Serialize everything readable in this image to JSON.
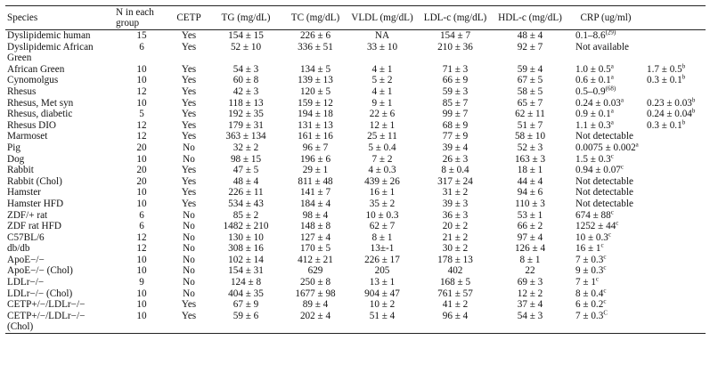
{
  "headers": {
    "species": "Species",
    "n": "N in each group",
    "cetp": "CETP",
    "tg": "TG (mg/dL)",
    "tc": "TC (mg/dL)",
    "vldl": "VLDL (mg/dL)",
    "ldl": "LDL-c (mg/dL)",
    "hdl": "HDL-c (mg/dL)",
    "crp": "CRP (ug/ml)"
  },
  "rows": [
    {
      "species": "Dyslipidemic human",
      "n": "15",
      "cetp": "Yes",
      "tg": "154 ± 15",
      "tc": "226 ± 6",
      "vldl": "NA",
      "ldl": "154 ± 7",
      "hdl": "48 ± 4",
      "crp": "0.1–8.6",
      "crp_sup": "(29)",
      "crp2": "",
      "crp2_sup": ""
    },
    {
      "species": "Dyslipidemic African Green",
      "n": "6",
      "cetp": "Yes",
      "tg": "52 ± 10",
      "tc": "336 ± 51",
      "vldl": "33 ± 10",
      "ldl": "210 ± 36",
      "hdl": "92 ± 7",
      "crp": "Not available",
      "crp_sup": "",
      "crp2": "",
      "crp2_sup": ""
    },
    {
      "species": "African Green",
      "n": "10",
      "cetp": "Yes",
      "tg": "54 ± 3",
      "tc": "134 ± 5",
      "vldl": "4 ± 1",
      "ldl": "71 ± 3",
      "hdl": "59 ± 4",
      "crp": "1.0 ± 0.5",
      "crp_sup": "a",
      "crp2": "1.7 ± 0.5",
      "crp2_sup": "b"
    },
    {
      "species": "Cynomolgus",
      "n": "10",
      "cetp": "Yes",
      "tg": "60 ± 8",
      "tc": "139 ± 13",
      "vldl": "5 ± 2",
      "ldl": "66 ± 9",
      "hdl": "67 ± 5",
      "crp": "0.6 ± 0.1",
      "crp_sup": "a",
      "crp2": "0.3 ± 0.1",
      "crp2_sup": "b"
    },
    {
      "species": "Rhesus",
      "n": "12",
      "cetp": "Yes",
      "tg": "42 ± 3",
      "tc": "120 ± 5",
      "vldl": "4 ± 1",
      "ldl": "59 ± 3",
      "hdl": "58 ± 5",
      "crp": "0.5–0.9",
      "crp_sup": "(68)",
      "crp2": "",
      "crp2_sup": ""
    },
    {
      "species": "Rhesus, Met syn",
      "n": "10",
      "cetp": "Yes",
      "tg": "118 ± 13",
      "tc": "159 ± 12",
      "vldl": "9 ± 1",
      "ldl": "85 ± 7",
      "hdl": "65 ± 7",
      "crp": "0.24 ± 0.03",
      "crp_sup": "a",
      "crp2": "0.23 ± 0.03",
      "crp2_sup": "b"
    },
    {
      "species": "Rhesus, diabetic",
      "n": "5",
      "cetp": "Yes",
      "tg": "192 ± 35",
      "tc": "194 ± 18",
      "vldl": "22 ± 6",
      "ldl": "99 ± 7",
      "hdl": "62 ± 11",
      "crp": "0.9 ± 0.1",
      "crp_sup": "a",
      "crp2": "0.24 ± 0.04",
      "crp2_sup": "b"
    },
    {
      "species": "Rhesus DIO",
      "n": "12",
      "cetp": "Yes",
      "tg": "179 ± 31",
      "tc": "131 ± 13",
      "vldl": "12 ± 1",
      "ldl": "68 ± 9",
      "hdl": "51 ± 7",
      "crp": "1.1 ± 0.3",
      "crp_sup": "a",
      "crp2": "0.3 ± 0.1",
      "crp2_sup": "b"
    },
    {
      "species": "Marmoset",
      "n": "12",
      "cetp": "Yes",
      "tg": "363 ± 134",
      "tc": "161 ± 16",
      "vldl": "25 ± 11",
      "ldl": "77 ± 9",
      "hdl": "58 ± 10",
      "crp": "Not detectable",
      "crp_sup": "",
      "crp2": "",
      "crp2_sup": ""
    },
    {
      "species": "Pig",
      "n": "20",
      "cetp": "No",
      "tg": "32 ± 2",
      "tc": "96 ± 7",
      "vldl": "5 ± 0.4",
      "ldl": "39 ± 4",
      "hdl": "52 ± 3",
      "crp": "0.0075 ± 0.002",
      "crp_sup": "a",
      "crp2": "",
      "crp2_sup": ""
    },
    {
      "species": "Dog",
      "n": "10",
      "cetp": "No",
      "tg": "98 ± 15",
      "tc": "196 ± 6",
      "vldl": "7 ± 2",
      "ldl": "26 ± 3",
      "hdl": "163 ± 3",
      "crp": "1.5 ± 0.3",
      "crp_sup": "c",
      "crp2": "",
      "crp2_sup": ""
    },
    {
      "species": "Rabbit",
      "n": "20",
      "cetp": "Yes",
      "tg": "47 ± 5",
      "tc": "29 ± 1",
      "vldl": "4 ± 0.3",
      "ldl": "8 ± 0.4",
      "hdl": "18 ± 1",
      "crp": "0.94 ± 0.07",
      "crp_sup": "c",
      "crp2": "",
      "crp2_sup": ""
    },
    {
      "species": "Rabbit (Chol)",
      "n": "20",
      "cetp": "Yes",
      "tg": "48 ± 4",
      "tc": "811 ± 48",
      "vldl": "439 ± 26",
      "ldl": "317 ± 24",
      "hdl": "44 ± 4",
      "crp": "Not detectable",
      "crp_sup": "",
      "crp2": "",
      "crp2_sup": ""
    },
    {
      "species": "Hamster",
      "n": "10",
      "cetp": "Yes",
      "tg": "226 ± 11",
      "tc": "141 ± 7",
      "vldl": "16 ± 1",
      "ldl": "31 ± 2",
      "hdl": "94 ± 6",
      "crp": "Not detectable",
      "crp_sup": "",
      "crp2": "",
      "crp2_sup": ""
    },
    {
      "species": "Hamster HFD",
      "n": "10",
      "cetp": "Yes",
      "tg": "534 ± 43",
      "tc": "184 ± 4",
      "vldl": "35 ± 2",
      "ldl": "39 ± 3",
      "hdl": "110 ± 3",
      "crp": "Not detectable",
      "crp_sup": "",
      "crp2": "",
      "crp2_sup": ""
    },
    {
      "species": "ZDF/+ rat",
      "n": "6",
      "cetp": "No",
      "tg": "85 ± 2",
      "tc": "98 ± 4",
      "vldl": "10 ± 0.3",
      "ldl": "36 ± 3",
      "hdl": "53 ± 1",
      "crp": "674 ± 88",
      "crp_sup": "c",
      "crp2": "",
      "crp2_sup": ""
    },
    {
      "species": "ZDF rat HFD",
      "n": "6",
      "cetp": "No",
      "tg": "1482 ± 210",
      "tc": "148 ± 8",
      "vldl": "62 ± 7",
      "ldl": "20 ± 2",
      "hdl": "66 ± 2",
      "crp": "1252 ± 44",
      "crp_sup": "c",
      "crp2": "",
      "crp2_sup": ""
    },
    {
      "species": "C57BL/6",
      "n": "12",
      "cetp": "No",
      "tg": "130 ± 10",
      "tc": "127 ± 4",
      "vldl": "8 ± 1",
      "ldl": "21 ± 2",
      "hdl": "97 ± 4",
      "crp": "10 ± 0.3",
      "crp_sup": "c",
      "crp2": "",
      "crp2_sup": ""
    },
    {
      "species": "db/db",
      "n": "12",
      "cetp": "No",
      "tg": "308 ± 16",
      "tc": "170 ± 5",
      "vldl": "13±-1",
      "ldl": "30 ± 2",
      "hdl": "126 ± 4",
      "crp": "16 ± 1",
      "crp_sup": "c",
      "crp2": "",
      "crp2_sup": ""
    },
    {
      "species": "ApoE−/−",
      "n": "10",
      "cetp": "No",
      "tg": "102 ± 14",
      "tc": "412 ± 21",
      "vldl": "226 ± 17",
      "ldl": "178 ± 13",
      "hdl": "8 ± 1",
      "crp": "7 ± 0.3",
      "crp_sup": "c",
      "crp2": "",
      "crp2_sup": ""
    },
    {
      "species": "ApoE−/− (Chol)",
      "n": "10",
      "cetp": "No",
      "tg": "154 ± 31",
      "tc": "629",
      "vldl": "205",
      "ldl": "402",
      "hdl": "22",
      "crp": "9 ± 0.3",
      "crp_sup": "c",
      "crp2": "",
      "crp2_sup": ""
    },
    {
      "species": "LDLr−/−",
      "n": "9",
      "cetp": "No",
      "tg": "124 ± 8",
      "tc": "250 ± 8",
      "vldl": "13 ± 1",
      "ldl": "168 ± 5",
      "hdl": "69 ± 3",
      "crp": "7 ± 1",
      "crp_sup": "c",
      "crp2": "",
      "crp2_sup": ""
    },
    {
      "species": "LDLr−/− (Chol)",
      "n": "10",
      "cetp": "No",
      "tg": "404 ± 35",
      "tc": "1677 ± 98",
      "vldl": "904 ± 47",
      "ldl": "761 ± 57",
      "hdl": "12 ± 2",
      "crp": "8 ± 0.4",
      "crp_sup": "c",
      "crp2": "",
      "crp2_sup": ""
    },
    {
      "species": "CETP+/−/LDLr−/−",
      "n": "10",
      "cetp": "Yes",
      "tg": "67 ± 9",
      "tc": "89 ± 4",
      "vldl": "10 ± 2",
      "ldl": "41 ± 2",
      "hdl": "37 ± 4",
      "crp": "6 ± 0.2",
      "crp_sup": "c",
      "crp2": "",
      "crp2_sup": ""
    },
    {
      "species": "CETP+/−/LDLr−/− (Chol)",
      "n": "10",
      "cetp": "Yes",
      "tg": "59 ± 6",
      "tc": "202 ± 4",
      "vldl": "51 ± 4",
      "ldl": "96 ± 4",
      "hdl": "54 ± 3",
      "crp": "7 ± 0.3",
      "crp_sup": "C",
      "crp2": "",
      "crp2_sup": ""
    }
  ]
}
